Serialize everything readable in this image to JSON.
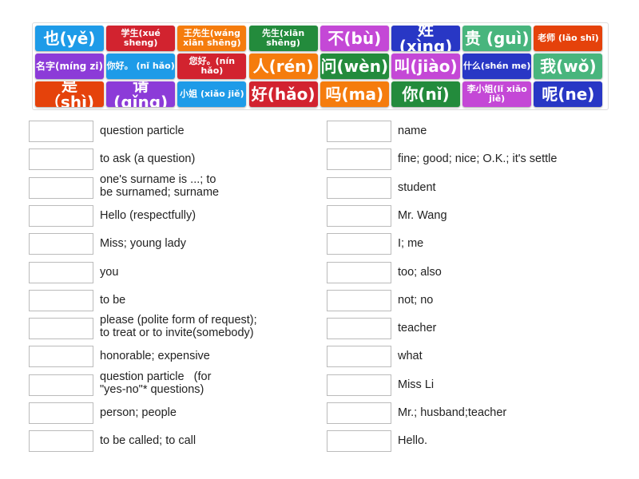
{
  "tiles": [
    {
      "label": "也(yě)",
      "color": "#1e9be8",
      "size": "big"
    },
    {
      "label": "学生(xué sheng)",
      "color": "#d2232f",
      "size": "sm"
    },
    {
      "label": "王先生(wáng xiān shēng)",
      "color": "#f57c0d",
      "size": "sm"
    },
    {
      "label": "先生(xiān shēng)",
      "color": "#238b3c",
      "size": "sm"
    },
    {
      "label": "不(bù)",
      "color": "#c448d6",
      "size": "big"
    },
    {
      "label": "姓(xìng)",
      "color": "#2837c5",
      "size": "big"
    },
    {
      "label": "贵 (guì)",
      "color": "#48b57d",
      "size": "big"
    },
    {
      "label": "老师 (lǎo shī)",
      "color": "#e5420b",
      "size": "sm"
    },
    {
      "label": "名字(míng zi)",
      "color": "#8c3bd8",
      "size": "med"
    },
    {
      "label": "你好。 (nǐ hǎo)",
      "color": "#1e9be8",
      "size": "sm"
    },
    {
      "label": "您好。(nín hǎo)",
      "color": "#d2232f",
      "size": "sm"
    },
    {
      "label": "人(rén)",
      "color": "#f57c0d",
      "size": "big"
    },
    {
      "label": "问(wèn)",
      "color": "#238b3c",
      "size": "big"
    },
    {
      "label": "叫(jiào)",
      "color": "#c448d6",
      "size": "big"
    },
    {
      "label": "什么(shén me)",
      "color": "#2837c5",
      "size": "sm"
    },
    {
      "label": "我(wǒ)",
      "color": "#48b57d",
      "size": "big"
    },
    {
      "label": "是 （shì)",
      "color": "#e5420b",
      "size": "big"
    },
    {
      "label": "请(qǐng)",
      "color": "#8c3bd8",
      "size": "big"
    },
    {
      "label": "小姐 (xiǎo jiě)",
      "color": "#1e9be8",
      "size": "sm"
    },
    {
      "label": "好(hǎo)",
      "color": "#d2232f",
      "size": "big"
    },
    {
      "label": "吗(ma)",
      "color": "#f57c0d",
      "size": "big"
    },
    {
      "label": "你(nǐ)",
      "color": "#238b3c",
      "size": "big"
    },
    {
      "label": "李小姐(lǐ xiǎo jiě)",
      "color": "#c448d6",
      "size": "sm"
    },
    {
      "label": "呢(ne)",
      "color": "#2837c5",
      "size": "big"
    }
  ],
  "left_definitions": [
    "question particle",
    "to ask (a question)",
    "one's surname is ...; to\nbe surnamed; surname",
    "Hello (respectfully)",
    "Miss; young lady",
    "you",
    "to be",
    "please (polite form of request);\nto treat or to invite(somebody)",
    "honorable; expensive",
    "question particle   (for\n\"yes-no\"* questions)",
    "person; people",
    "to be called; to call"
  ],
  "right_definitions": [
    "name",
    "fine; good; nice; O.K.; it's settle",
    "student",
    "Mr. Wang",
    "I; me",
    "too; also",
    "not; no",
    "teacher",
    "what",
    "Miss Li",
    "Mr.; husband;teacher",
    "Hello."
  ]
}
